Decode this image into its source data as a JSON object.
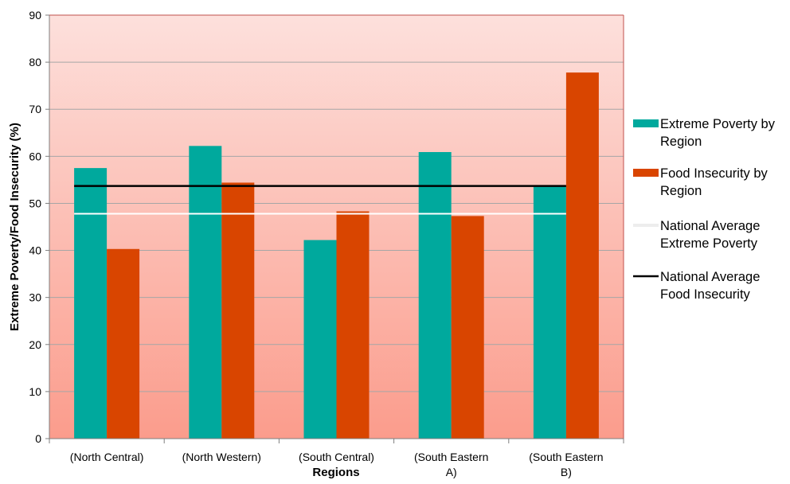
{
  "chart_data": {
    "type": "bar",
    "title": "",
    "xlabel": "Regions",
    "ylabel": "Extreme Poverty/Food Insecurity (%)",
    "ylim": [
      0,
      90
    ],
    "yticks": [
      0,
      10,
      20,
      30,
      40,
      50,
      60,
      70,
      80,
      90
    ],
    "categories": [
      [
        "(North Central)"
      ],
      [
        "(North Western)"
      ],
      [
        "(South Central)"
      ],
      [
        "(South Eastern",
        "A)"
      ],
      [
        "(South Eastern",
        "B)"
      ]
    ],
    "series": [
      {
        "name": "Extreme Poverty by Region",
        "color": "#00a99d",
        "values": [
          57.5,
          62.2,
          42.2,
          60.9,
          53.7
        ]
      },
      {
        "name": "Food Insecurity by Region",
        "color": "#d94500",
        "values": [
          40.3,
          54.4,
          48.3,
          47.3,
          77.8
        ]
      }
    ],
    "reference_lines": [
      {
        "name": "National Average Extreme Poverty",
        "value": 47.8,
        "color": "#ffffff"
      },
      {
        "name": "National Average Food Insecurity",
        "value": 53.7,
        "color": "#000000"
      }
    ],
    "legend": {
      "position": "right",
      "entries": [
        {
          "lines": [
            "Extreme Poverty by",
            "Region"
          ],
          "kind": "bar",
          "color": "#00a99d"
        },
        {
          "lines": [
            "Food Insecurity by",
            "Region"
          ],
          "kind": "bar",
          "color": "#d94500"
        },
        {
          "lines": [
            "National Average",
            "Extreme Poverty"
          ],
          "kind": "line",
          "color": "#ffffff"
        },
        {
          "lines": [
            "National Average",
            "Food Insecurity"
          ],
          "kind": "line",
          "color": "#000000"
        }
      ]
    },
    "plot_background": {
      "top": "#fde0dc",
      "bottom": "#fb9c8c"
    },
    "grid": true
  }
}
